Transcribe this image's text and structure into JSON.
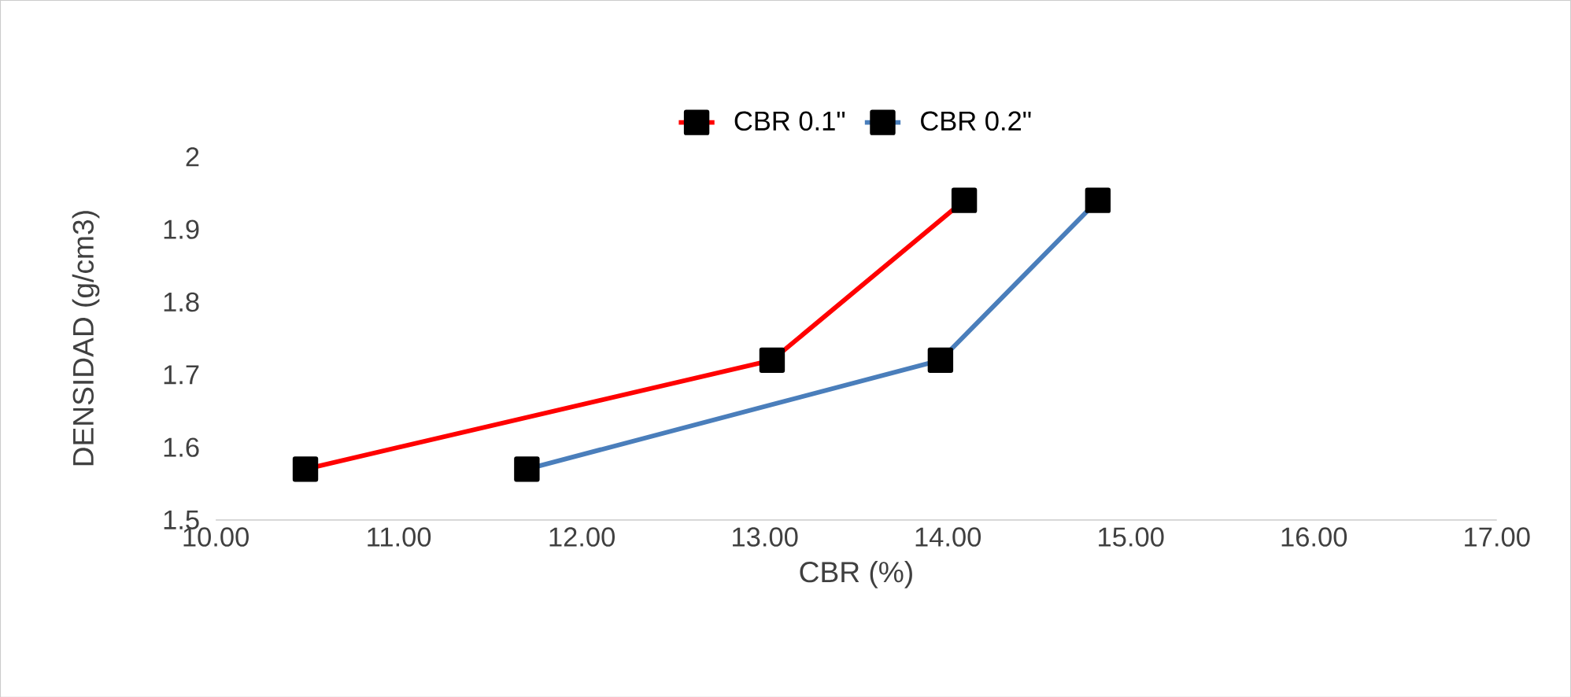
{
  "chart_data": {
    "type": "line",
    "xlabel": "CBR (%)",
    "ylabel": "DENSIDAD (g/cm3)",
    "series": [
      {
        "name": "CBR 0.1\"",
        "color": "#ff0000",
        "x": [
          10.49,
          13.04,
          14.09
        ],
        "values": [
          1.57,
          1.72,
          1.94
        ]
      },
      {
        "name": "CBR 0.2\"",
        "color": "#4a7ebb",
        "x": [
          11.7,
          13.96,
          14.82
        ],
        "values": [
          1.57,
          1.72,
          1.94
        ]
      }
    ],
    "xlim": [
      10,
      17
    ],
    "xticks": [
      {
        "value": 10,
        "label": "10.00"
      },
      {
        "value": 11,
        "label": "11.00"
      },
      {
        "value": 12,
        "label": "12.00"
      },
      {
        "value": 13,
        "label": "13.00"
      },
      {
        "value": 14,
        "label": "14.00"
      },
      {
        "value": 15,
        "label": "15.00"
      },
      {
        "value": 16,
        "label": "16.00"
      },
      {
        "value": 17,
        "label": "17.00"
      }
    ],
    "ylim": [
      1.5,
      2
    ],
    "yticks": [
      1.5,
      1.6,
      1.7,
      1.8,
      1.9,
      2
    ],
    "grid": false,
    "legend": "top",
    "marker": "square",
    "line_style": "solid"
  }
}
